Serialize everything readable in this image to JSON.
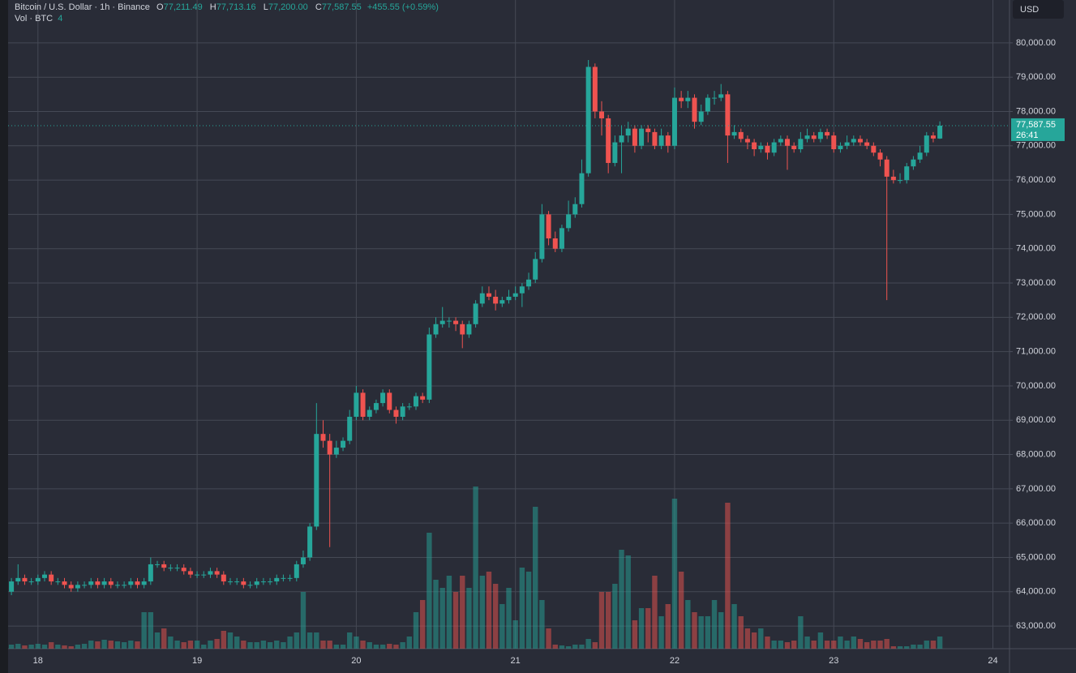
{
  "chart_data": {
    "type": "candlestick",
    "title": "Bitcoin / U.S. Dollar · 1h · Binance",
    "ohlc_legend": [
      {
        "label": "O",
        "value": "77,211.49"
      },
      {
        "label": "H",
        "value": "77,713.16"
      },
      {
        "label": "L",
        "value": "77,200.00"
      },
      {
        "label": "C",
        "value": "77,587.55"
      }
    ],
    "change": "+455.55 (+0.59%)",
    "volume_label": "Vol · BTC",
    "volume_value": "4",
    "currency": "USD",
    "last_price_label": "77,587.55",
    "countdown": "26:41",
    "up_color": "#26a69a",
    "down_color": "#ef5350",
    "volume_opacity": 0.5,
    "grid": true,
    "categories": [
      null,
      null,
      null,
      null,
      "18",
      null,
      null,
      null,
      null,
      null,
      null,
      null,
      null,
      null,
      null,
      null,
      null,
      null,
      null,
      null,
      null,
      null,
      null,
      null,
      null,
      null,
      null,
      null,
      "19",
      null,
      null,
      null,
      null,
      null,
      null,
      null,
      null,
      null,
      null,
      null,
      null,
      null,
      null,
      null,
      null,
      null,
      null,
      null,
      null,
      null,
      null,
      null,
      "20",
      null,
      null,
      null,
      null,
      null,
      null,
      null,
      null,
      null,
      null,
      null,
      null,
      null,
      null,
      null,
      null,
      null,
      null,
      null,
      null,
      null,
      null,
      null,
      "21",
      null,
      null,
      null,
      null,
      null,
      null,
      null,
      null,
      null,
      null,
      null,
      null,
      null,
      null,
      null,
      null,
      null,
      null,
      null,
      null,
      null,
      null,
      null,
      "22",
      null,
      null,
      null,
      null,
      null,
      null,
      null,
      null,
      null,
      null,
      null,
      null,
      null,
      null,
      null,
      null,
      null,
      null,
      null,
      null,
      null,
      null,
      null,
      "23",
      null,
      null,
      null,
      null,
      null,
      null,
      null,
      null,
      null,
      null,
      null,
      null,
      null,
      null,
      null,
      null,
      null,
      null,
      null,
      null,
      null,
      null,
      null,
      "24",
      null,
      null
    ],
    "open": [
      64000,
      64300,
      64400,
      64300,
      64300,
      64400,
      64500,
      64300,
      64300,
      64200,
      64100,
      64200,
      64200,
      64300,
      64200,
      64300,
      64200,
      64200,
      64200,
      64300,
      64200,
      64300,
      64800,
      64800,
      64700,
      64700,
      64700,
      64600,
      64500,
      64500,
      64500,
      64600,
      64500,
      64300,
      64300,
      64300,
      64200,
      64200,
      64300,
      64300,
      64300,
      64400,
      64400,
      64400,
      64800,
      65000,
      65900,
      68600,
      68400,
      68000,
      68200,
      68400,
      69100,
      69800,
      69100,
      69300,
      69500,
      69800,
      69300,
      69100,
      69400,
      69400,
      69700,
      69600,
      71500,
      71800,
      71900,
      71900,
      71800,
      71500,
      71800,
      72400,
      72700,
      72600,
      72400,
      72500,
      72600,
      72700,
      72900,
      73100,
      73700,
      75000,
      74300,
      74000,
      74600,
      75000,
      75300,
      76200,
      79300,
      78000,
      77800,
      76500,
      77100,
      77300,
      77500,
      77000,
      77500,
      77400,
      77000,
      77300,
      77000,
      78400,
      78300,
      78400,
      77700,
      78000,
      78400,
      78400,
      78500,
      77300,
      77400,
      77200,
      77100,
      76900,
      77000,
      76800,
      77100,
      77200,
      77000,
      76900,
      77200,
      77300,
      77200,
      77400,
      77300,
      76900,
      77000,
      77100,
      77200,
      77100,
      77000,
      76800,
      76600,
      76100,
      76000,
      76000,
      76400,
      76600,
      76800,
      77300,
      77211.49,
      null,
      null,
      null,
      null,
      null,
      null,
      null,
      null,
      null,
      null
    ],
    "high": [
      64400,
      64800,
      64500,
      64400,
      64500,
      64600,
      64600,
      64400,
      64400,
      64300,
      64300,
      64300,
      64400,
      64400,
      64400,
      64400,
      64300,
      64300,
      64400,
      64400,
      64400,
      65000,
      64900,
      64900,
      64800,
      64800,
      64800,
      64700,
      64600,
      64600,
      64700,
      64700,
      64600,
      64400,
      64400,
      64400,
      64300,
      64400,
      64400,
      64400,
      64500,
      64500,
      64500,
      64900,
      65200,
      66000,
      69500,
      69000,
      68600,
      68400,
      68500,
      69300,
      70000,
      69900,
      69400,
      69600,
      69900,
      69900,
      69400,
      69500,
      69500,
      69800,
      69800,
      71700,
      72000,
      72300,
      72000,
      72000,
      71900,
      71900,
      72500,
      72900,
      72900,
      72800,
      72600,
      72800,
      72900,
      73000,
      73300,
      73900,
      75300,
      75100,
      74500,
      74700,
      75400,
      75500,
      76600,
      79500,
      79400,
      78300,
      77900,
      77300,
      77600,
      77700,
      77600,
      77600,
      77600,
      77500,
      77500,
      77400,
      78700,
      78600,
      78600,
      78500,
      78200,
      78500,
      78600,
      78800,
      78600,
      77600,
      77500,
      77300,
      77200,
      77100,
      77100,
      77200,
      77300,
      77300,
      77100,
      77400,
      77500,
      77400,
      77500,
      77500,
      77400,
      77100,
      77300,
      77300,
      77300,
      77200,
      77100,
      76900,
      76700,
      76300,
      76200,
      76500,
      76700,
      77000,
      77400,
      77400,
      77713.16,
      null,
      null,
      null,
      null,
      null,
      null,
      null,
      null,
      null,
      null
    ],
    "low": [
      63900,
      64200,
      64200,
      64200,
      64200,
      64300,
      64200,
      64200,
      64100,
      64000,
      64000,
      64100,
      64100,
      64100,
      64100,
      64100,
      64100,
      64100,
      64100,
      64100,
      64100,
      64200,
      64700,
      64600,
      64600,
      64600,
      64500,
      64400,
      64400,
      64400,
      64400,
      64400,
      64200,
      64200,
      64200,
      64100,
      64100,
      64100,
      64200,
      64200,
      64200,
      64300,
      64300,
      64300,
      64700,
      64900,
      65800,
      68200,
      65300,
      67900,
      68100,
      68300,
      69000,
      69000,
      69000,
      69200,
      69400,
      69200,
      68900,
      69000,
      69300,
      69300,
      69500,
      69500,
      71400,
      71700,
      71700,
      71600,
      71100,
      71400,
      71700,
      72300,
      72500,
      72200,
      72300,
      72400,
      72500,
      72300,
      72800,
      73000,
      73600,
      74100,
      73900,
      73900,
      74500,
      74900,
      75200,
      76100,
      77800,
      77300,
      76200,
      76400,
      76200,
      77100,
      76800,
      76900,
      77100,
      76900,
      76900,
      76800,
      76900,
      78100,
      78100,
      77500,
      77600,
      77900,
      78200,
      78300,
      76500,
      77200,
      77100,
      76900,
      76700,
      76800,
      76600,
      76700,
      77000,
      76300,
      76800,
      76800,
      77100,
      77100,
      77100,
      77200,
      76800,
      76800,
      76900,
      77000,
      77000,
      76900,
      76700,
      76400,
      72500,
      75900,
      75900,
      75900,
      76300,
      76500,
      76700,
      77100,
      77200,
      null,
      null,
      null,
      null,
      null,
      null,
      null,
      null,
      null,
      null
    ],
    "close": [
      64300,
      64400,
      64300,
      64300,
      64400,
      64500,
      64300,
      64300,
      64200,
      64100,
      64200,
      64200,
      64300,
      64200,
      64300,
      64200,
      64200,
      64200,
      64300,
      64200,
      64300,
      64800,
      64800,
      64700,
      64700,
      64700,
      64600,
      64500,
      64500,
      64500,
      64600,
      64500,
      64300,
      64300,
      64300,
      64200,
      64200,
      64300,
      64300,
      64300,
      64400,
      64400,
      64400,
      64800,
      65000,
      65900,
      68600,
      68400,
      68000,
      68200,
      68400,
      69100,
      69800,
      69100,
      69300,
      69500,
      69800,
      69300,
      69100,
      69400,
      69400,
      69700,
      69600,
      71500,
      71800,
      71900,
      71900,
      71800,
      71500,
      71800,
      72400,
      72700,
      72600,
      72400,
      72500,
      72600,
      72700,
      72900,
      73100,
      73700,
      75000,
      74300,
      74000,
      74600,
      75000,
      75300,
      76200,
      79300,
      78000,
      77800,
      76500,
      77100,
      77300,
      77500,
      77000,
      77500,
      77400,
      77000,
      77300,
      77000,
      78400,
      78300,
      78400,
      77700,
      78000,
      78400,
      78400,
      78500,
      77300,
      77400,
      77200,
      77100,
      76900,
      77000,
      76800,
      77100,
      77200,
      77000,
      76900,
      77200,
      77300,
      77200,
      77400,
      77300,
      76900,
      77000,
      77100,
      77200,
      77100,
      77000,
      76800,
      76600,
      76100,
      76000,
      76000,
      76400,
      76600,
      76800,
      77300,
      77211.49,
      77587.55,
      null,
      null,
      null,
      null,
      null,
      null,
      null,
      null,
      null,
      null
    ],
    "volume": [
      100,
      120,
      80,
      100,
      120,
      100,
      160,
      100,
      80,
      60,
      100,
      120,
      200,
      180,
      220,
      200,
      180,
      160,
      200,
      180,
      900,
      900,
      400,
      500,
      300,
      200,
      160,
      200,
      200,
      100,
      200,
      240,
      440,
      400,
      300,
      200,
      160,
      160,
      200,
      160,
      200,
      160,
      300,
      400,
      1400,
      400,
      400,
      200,
      200,
      100,
      100,
      400,
      300,
      200,
      160,
      100,
      100,
      120,
      100,
      160,
      300,
      900,
      1200,
      2860,
      1700,
      1500,
      1800,
      1400,
      1800,
      1500,
      4000,
      1800,
      1900,
      1600,
      1100,
      1500,
      700,
      2000,
      1900,
      3500,
      1200,
      500,
      100,
      80,
      60,
      100,
      100,
      240,
      160,
      1400,
      1400,
      1600,
      2440,
      2300,
      700,
      1000,
      1000,
      1800,
      800,
      1100,
      3700,
      1900,
      1200,
      900,
      800,
      800,
      1200,
      900,
      3600,
      1100,
      800,
      500,
      400,
      500,
      300,
      200,
      200,
      160,
      200,
      800,
      300,
      200,
      400,
      200,
      200,
      300,
      200,
      300,
      240,
      160,
      200,
      200,
      240,
      60,
      60,
      60,
      100,
      100,
      200,
      200,
      300,
      null,
      null,
      null,
      null,
      null,
      null,
      null,
      null,
      null,
      null
    ],
    "ylim": [
      62340,
      81250
    ],
    "yticks": [
      {
        "value": 63000,
        "label": "63,000.00"
      },
      {
        "value": 64000,
        "label": "64,000.00"
      },
      {
        "value": 65000,
        "label": "65,000.00"
      },
      {
        "value": 66000,
        "label": "66,000.00"
      },
      {
        "value": 67000,
        "label": "67,000.00"
      },
      {
        "value": 68000,
        "label": "68,000.00"
      },
      {
        "value": 69000,
        "label": "69,000.00"
      },
      {
        "value": 70000,
        "label": "70,000.00"
      },
      {
        "value": 71000,
        "label": "71,000.00"
      },
      {
        "value": 72000,
        "label": "72,000.00"
      },
      {
        "value": 73000,
        "label": "73,000.00"
      },
      {
        "value": 74000,
        "label": "74,000.00"
      },
      {
        "value": 75000,
        "label": "75,000.00"
      },
      {
        "value": 76000,
        "label": "76,000.00"
      },
      {
        "value": 77000,
        "label": "77,000.00"
      },
      {
        "value": 78000,
        "label": "78,000.00"
      },
      {
        "value": 79000,
        "label": "79,000.00"
      },
      {
        "value": 80000,
        "label": "80,000.00"
      }
    ]
  }
}
